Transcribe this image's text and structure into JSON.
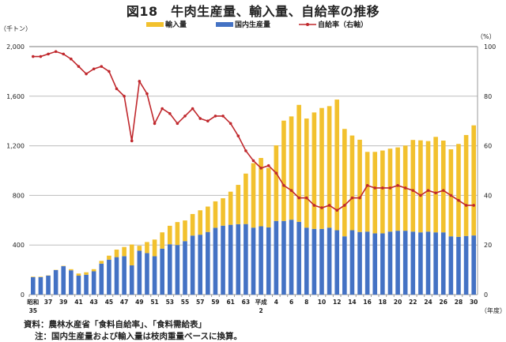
{
  "chart_data": {
    "type": "bar+line",
    "title": "図18　牛肉生産量、輸入量、自給率の推移",
    "ylabel_left": "（千トン）",
    "ylabel_right": "（%）",
    "xlabel": "（年度）",
    "ylim_left": [
      0,
      2000
    ],
    "ylim_right": [
      0,
      100
    ],
    "yticks_left": [
      "0",
      "400",
      "800",
      "1,200",
      "1,600",
      "2,000"
    ],
    "yticks_right": [
      "0",
      "20",
      "40",
      "60",
      "80",
      "100"
    ],
    "grid": true,
    "legend_position": "top-center",
    "colors": {
      "imports": "#F2C12E",
      "domestic": "#4472C4",
      "ratio": "#C0282D",
      "grid": "#BDBDBD"
    },
    "x_tick_labels": [
      "昭和\n35",
      "37",
      "39",
      "41",
      "43",
      "45",
      "47",
      "49",
      "51",
      "53",
      "55",
      "57",
      "59",
      "61",
      "63",
      "平成\n2",
      "4",
      "6",
      "8",
      "10",
      "12",
      "14",
      "16",
      "18",
      "20",
      "22",
      "24",
      "26",
      "28",
      "30"
    ],
    "years": [
      "S35",
      "S36",
      "S37",
      "S38",
      "S39",
      "S40",
      "S41",
      "S42",
      "S43",
      "S44",
      "S45",
      "S46",
      "S47",
      "S48",
      "S49",
      "S50",
      "S51",
      "S52",
      "S53",
      "S54",
      "S55",
      "S56",
      "S57",
      "S58",
      "S59",
      "S60",
      "S61",
      "S62",
      "S63",
      "H1",
      "H2",
      "H3",
      "H4",
      "H5",
      "H6",
      "H7",
      "H8",
      "H9",
      "H10",
      "H11",
      "H12",
      "H13",
      "H14",
      "H15",
      "H16",
      "H17",
      "H18",
      "H19",
      "H20",
      "H21",
      "H22",
      "H23",
      "H24",
      "H25",
      "H26",
      "H27",
      "H28",
      "H29",
      "H30"
    ],
    "series": [
      {
        "name": "輸入量",
        "type": "bar-stacked",
        "axis": "left",
        "values": [
          4,
          4,
          2,
          2,
          3,
          9,
          17,
          20,
          17,
          22,
          32,
          61,
          74,
          168,
          40,
          89,
          135,
          131,
          149,
          185,
          167,
          174,
          197,
          205,
          213,
          221,
          267,
          317,
          407,
          520,
          551,
          480,
          610,
          809,
          833,
          943,
          880,
          939,
          975,
          980,
          1054,
          866,
          764,
          744,
          643,
          657,
          668,
          669,
          672,
          687,
          739,
          742,
          730,
          770,
          740,
          702,
          749,
          814,
          888
        ]
      },
      {
        "name": "国内生産量",
        "type": "bar-stacked",
        "axis": "left",
        "values": [
          141,
          141,
          153,
          198,
          229,
          196,
          153,
          160,
          188,
          250,
          282,
          302,
          310,
          236,
          354,
          335,
          309,
          371,
          406,
          400,
          431,
          476,
          483,
          505,
          539,
          556,
          563,
          568,
          569,
          540,
          551,
          542,
          594,
          594,
          604,
          587,
          540,
          530,
          530,
          540,
          519,
          470,
          519,
          505,
          508,
          494,
          494,
          508,
          515,
          515,
          508,
          502,
          508,
          502,
          502,
          470,
          466,
          473,
          477
        ]
      },
      {
        "name": "自給率（右軸）",
        "type": "line",
        "axis": "right",
        "values": [
          96,
          96,
          97,
          98,
          97,
          95,
          92,
          89,
          91,
          92,
          90,
          83,
          80,
          62,
          86,
          81,
          69,
          75,
          73,
          69,
          72,
          75,
          71,
          70,
          72,
          72,
          69,
          64,
          58,
          54,
          51,
          52,
          49,
          44,
          42,
          39,
          39,
          36,
          35,
          36,
          34,
          36,
          39,
          39,
          44,
          43,
          43,
          43,
          44,
          43,
          42,
          40,
          42,
          41,
          42,
          40,
          38,
          36,
          36
        ]
      }
    ]
  },
  "notes": {
    "source": "資料：農林水産省「食料自給率」、「食料需給表」",
    "note": "注：国内生産量および輸入量は枝肉重量ベースに換算。"
  }
}
